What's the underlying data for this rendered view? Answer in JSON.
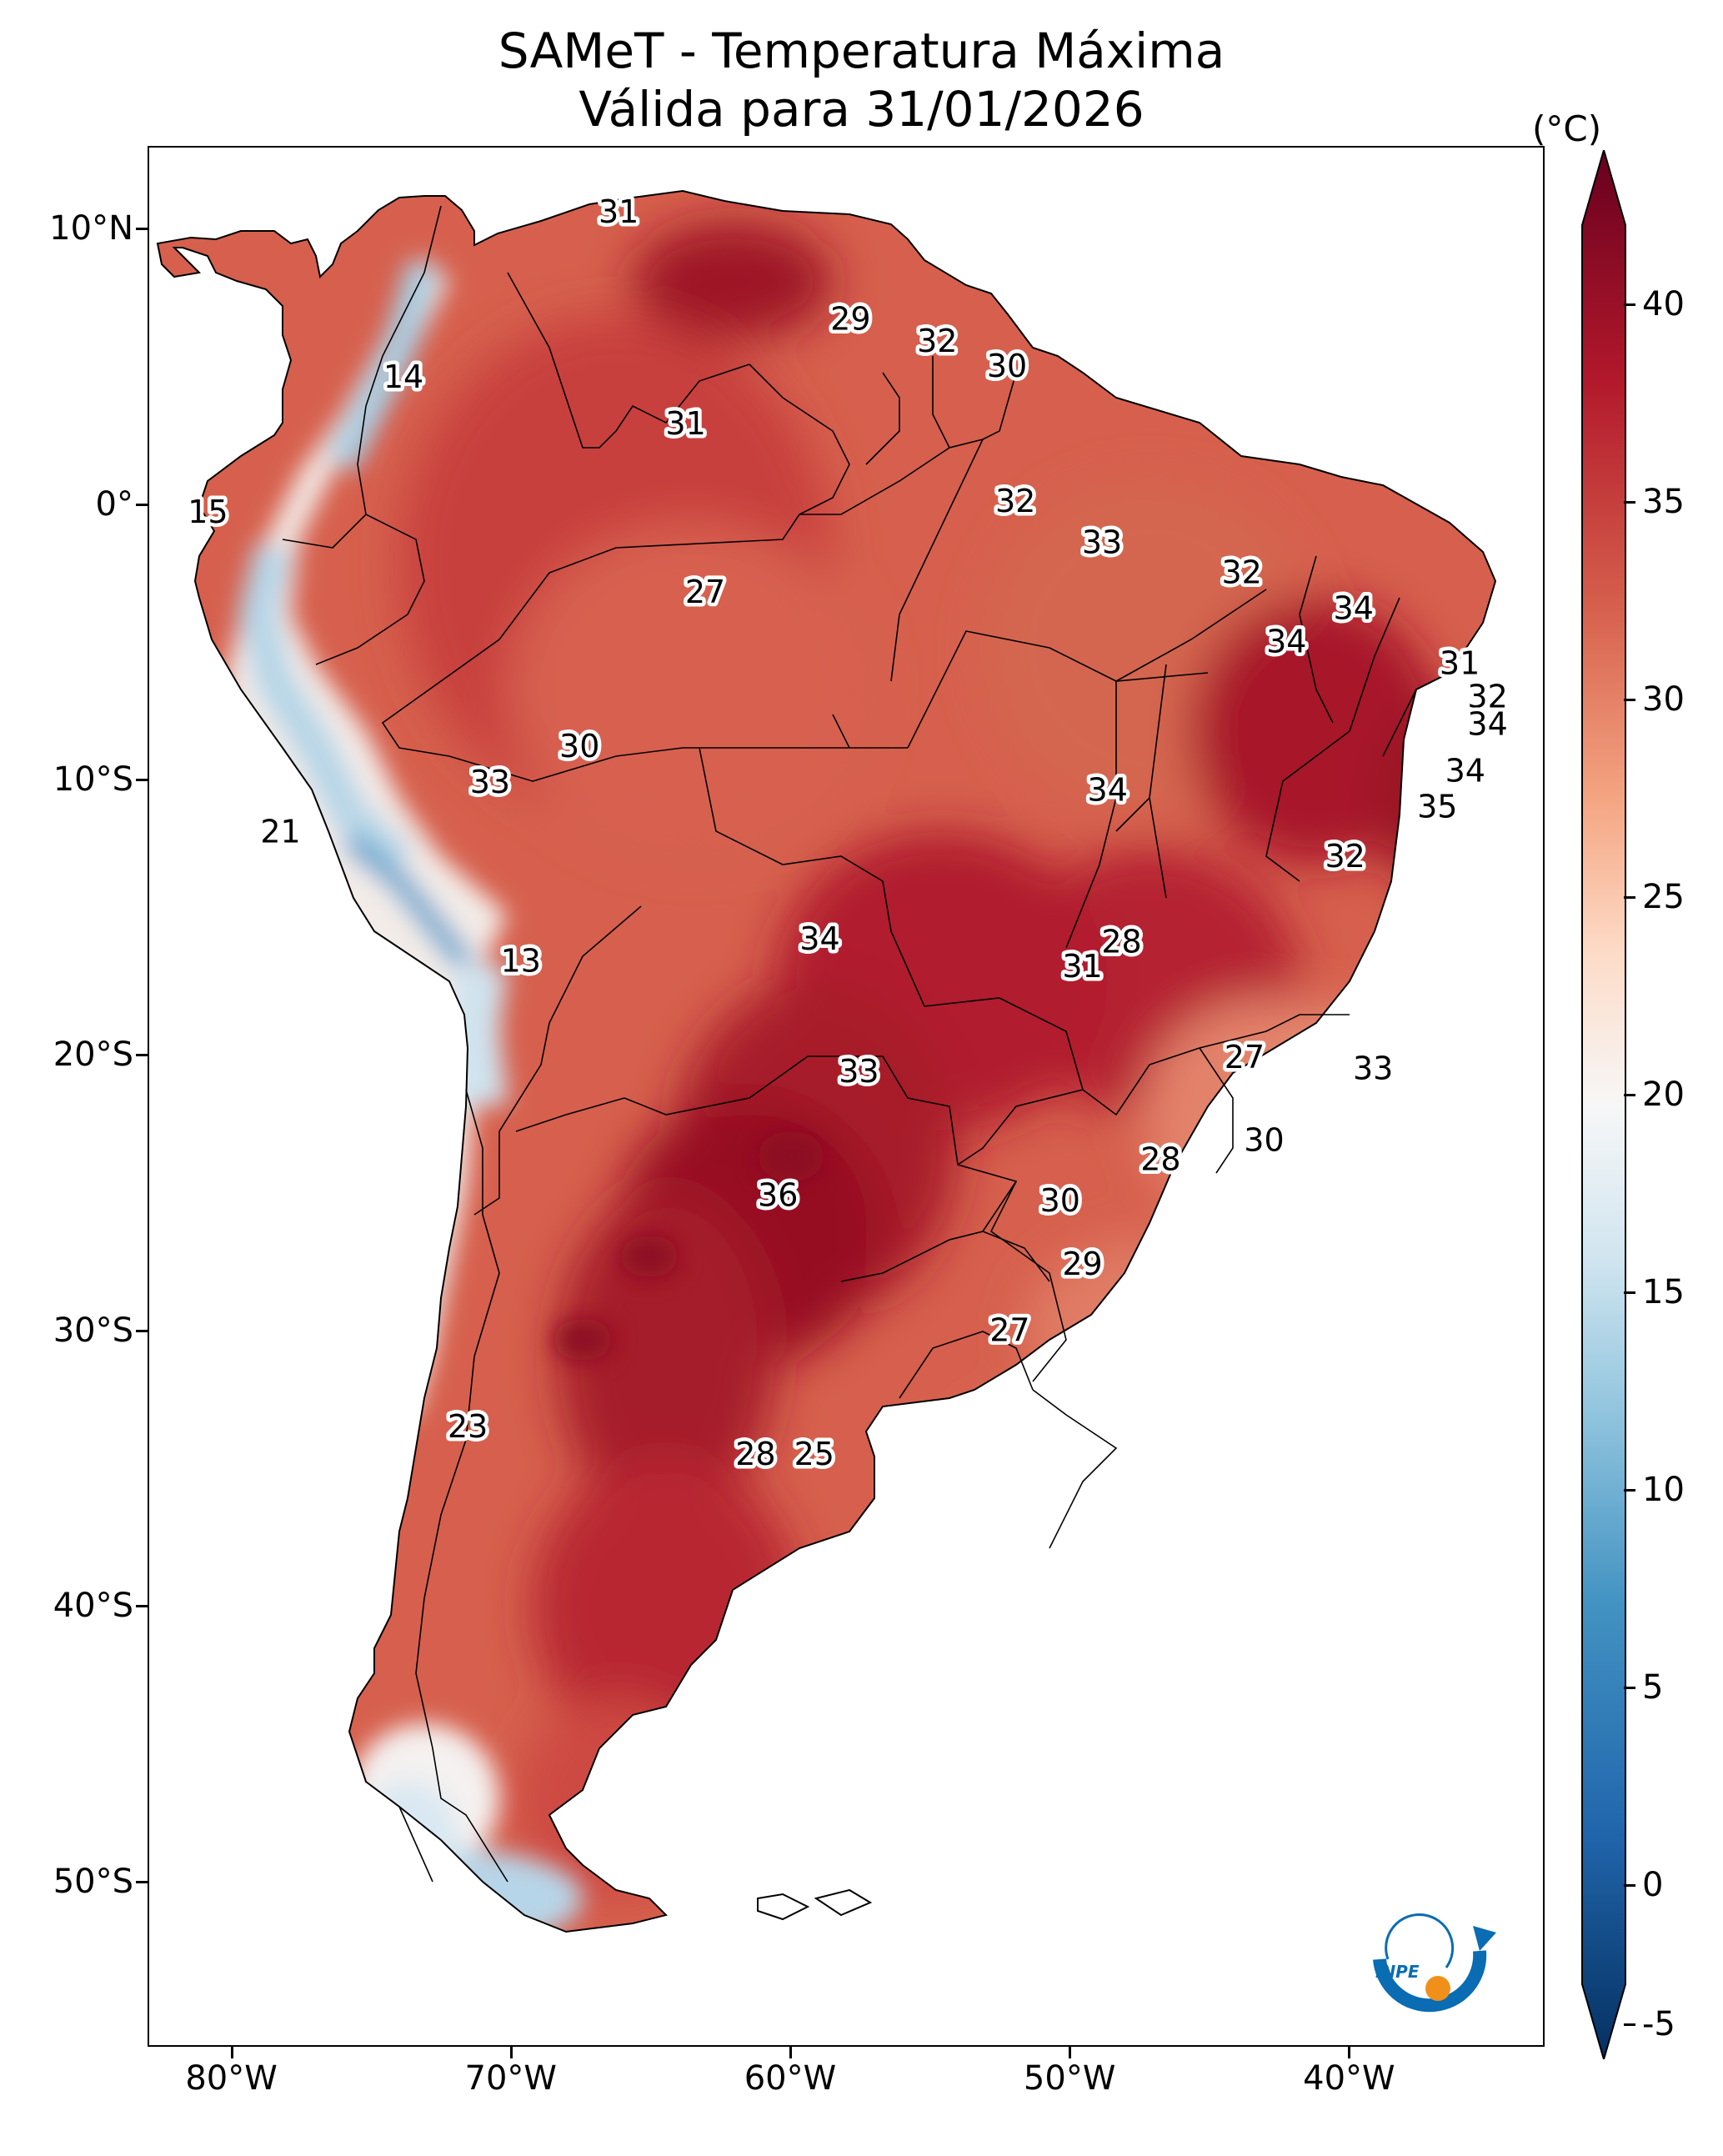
{
  "title": {
    "line1": "SAMeT - Temperatura Máxima",
    "line2": "Válida para 31/01/2026"
  },
  "map": {
    "region": "South America",
    "variable": "Maximum temperature",
    "lon_range": [
      -83,
      -33
    ],
    "lat_range": [
      -56,
      13
    ],
    "lat_ticks": [
      {
        "value": 10,
        "label": "10°N"
      },
      {
        "value": 0,
        "label": "0°"
      },
      {
        "value": -10,
        "label": "10°S"
      },
      {
        "value": -20,
        "label": "20°S"
      },
      {
        "value": -30,
        "label": "30°S"
      },
      {
        "value": -40,
        "label": "40°S"
      },
      {
        "value": -50,
        "label": "50°S"
      }
    ],
    "lon_ticks": [
      {
        "value": -80,
        "label": "80°W"
      },
      {
        "value": -70,
        "label": "70°W"
      },
      {
        "value": -60,
        "label": "60°W"
      },
      {
        "value": -50,
        "label": "50°W"
      },
      {
        "value": -40,
        "label": "40°W"
      }
    ],
    "temperature_labels": [
      {
        "lon": -66.2,
        "lat": 10.6,
        "value": "31"
      },
      {
        "lon": -80.9,
        "lat": -0.3,
        "value": "15"
      },
      {
        "lon": -73.9,
        "lat": 4.6,
        "value": "14"
      },
      {
        "lon": -57.9,
        "lat": 6.7,
        "value": "29"
      },
      {
        "lon": -54.8,
        "lat": 5.9,
        "value": "32"
      },
      {
        "lon": -52.3,
        "lat": 5.0,
        "value": "30"
      },
      {
        "lon": -63.8,
        "lat": 2.9,
        "value": "31"
      },
      {
        "lon": -52.0,
        "lat": 0.1,
        "value": "32"
      },
      {
        "lon": -48.9,
        "lat": -1.4,
        "value": "33"
      },
      {
        "lon": -63.1,
        "lat": -3.2,
        "value": "27"
      },
      {
        "lon": -43.9,
        "lat": -2.5,
        "value": "32"
      },
      {
        "lon": -39.9,
        "lat": -3.8,
        "value": "34"
      },
      {
        "lon": -42.3,
        "lat": -5.0,
        "value": "34"
      },
      {
        "lon": -36.1,
        "lat": -5.8,
        "value": "31"
      },
      {
        "lon": -35.1,
        "lat": -7.0,
        "value": "32"
      },
      {
        "lon": -35.1,
        "lat": -8.0,
        "value": "34"
      },
      {
        "lon": -35.9,
        "lat": -9.7,
        "value": "34"
      },
      {
        "lon": -36.9,
        "lat": -11.0,
        "value": "35"
      },
      {
        "lon": -48.7,
        "lat": -10.4,
        "value": "34"
      },
      {
        "lon": -67.6,
        "lat": -8.8,
        "value": "30"
      },
      {
        "lon": -70.8,
        "lat": -10.1,
        "value": "33"
      },
      {
        "lon": -78.3,
        "lat": -11.9,
        "value": "21"
      },
      {
        "lon": -40.2,
        "lat": -12.8,
        "value": "32"
      },
      {
        "lon": -59.0,
        "lat": -15.8,
        "value": "34"
      },
      {
        "lon": -48.2,
        "lat": -15.9,
        "value": "28"
      },
      {
        "lon": -49.6,
        "lat": -16.8,
        "value": "31"
      },
      {
        "lon": -69.7,
        "lat": -16.6,
        "value": "13"
      },
      {
        "lon": -43.8,
        "lat": -20.1,
        "value": "27"
      },
      {
        "lon": -39.2,
        "lat": -20.5,
        "value": "33"
      },
      {
        "lon": -57.6,
        "lat": -20.6,
        "value": "33"
      },
      {
        "lon": -43.1,
        "lat": -23.1,
        "value": "30"
      },
      {
        "lon": -46.8,
        "lat": -23.8,
        "value": "28"
      },
      {
        "lon": -60.5,
        "lat": -25.1,
        "value": "36"
      },
      {
        "lon": -50.4,
        "lat": -25.3,
        "value": "30"
      },
      {
        "lon": -49.6,
        "lat": -27.6,
        "value": "29"
      },
      {
        "lon": -52.2,
        "lat": -30.0,
        "value": "27"
      },
      {
        "lon": -71.6,
        "lat": -33.5,
        "value": "23"
      },
      {
        "lon": -61.3,
        "lat": -34.5,
        "value": "28"
      },
      {
        "lon": -59.2,
        "lat": -34.5,
        "value": "25"
      }
    ]
  },
  "colorbar": {
    "unit": "(°C)",
    "vmin": -7,
    "vmax": 42,
    "ticks": [
      "-5",
      "0",
      "5",
      "10",
      "15",
      "20",
      "25",
      "30",
      "35",
      "40"
    ],
    "tick_values": [
      -5,
      0,
      5,
      10,
      15,
      20,
      25,
      30,
      35,
      40
    ],
    "extend": "both",
    "colors": [
      "#053061",
      "#2166ac",
      "#4393c3",
      "#92c5de",
      "#d1e5f0",
      "#f7f7f7",
      "#fddbc7",
      "#f4a582",
      "#d6604d",
      "#b2182b",
      "#67001f"
    ]
  },
  "logo": {
    "text": "INPE",
    "colors": {
      "blue": "#0a6cb3",
      "orange": "#f0901a"
    }
  }
}
